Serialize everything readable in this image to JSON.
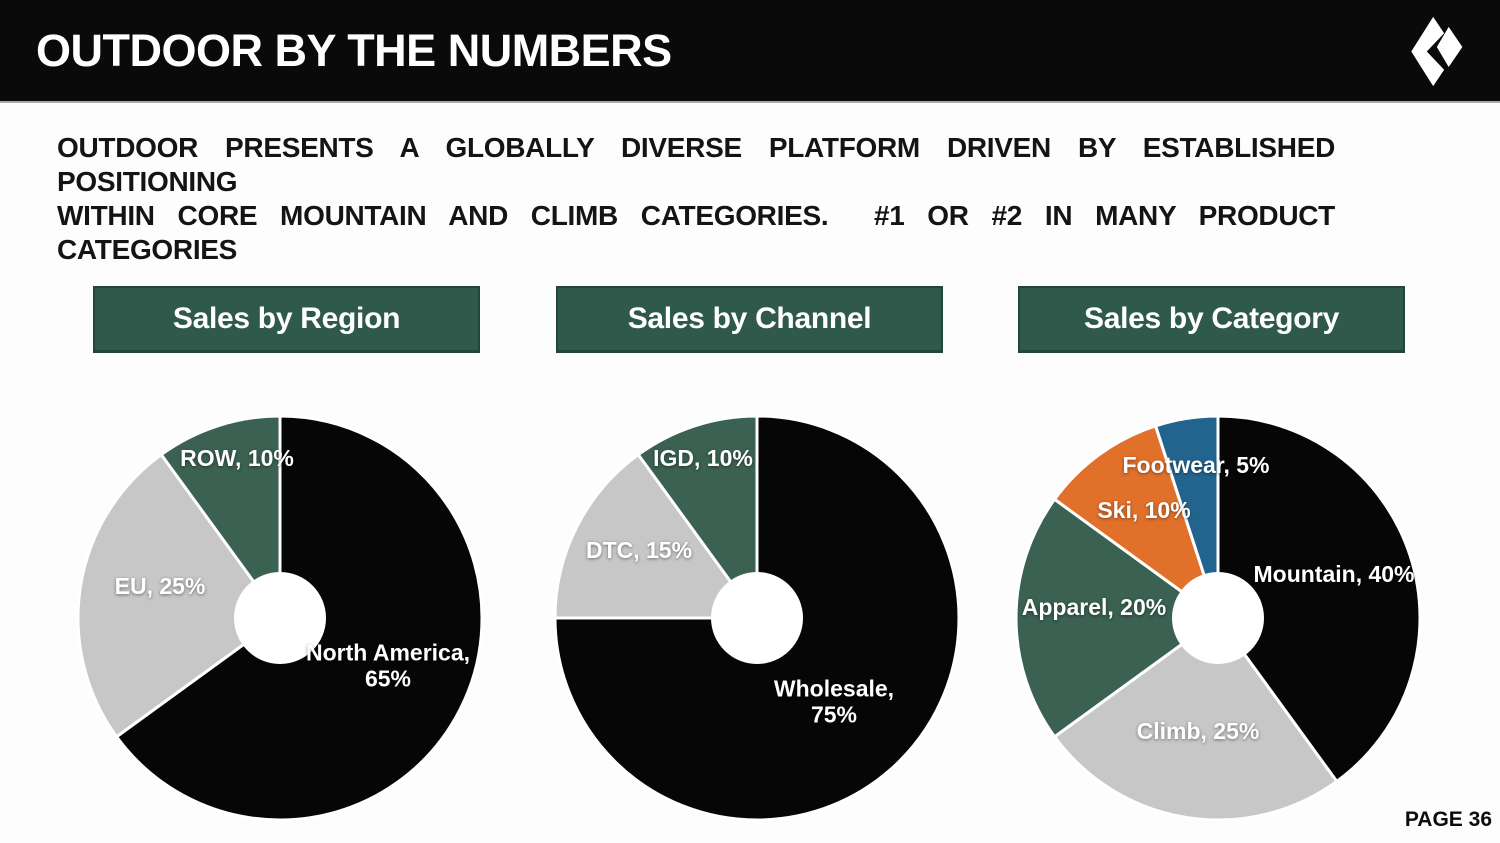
{
  "slide": {
    "title": "OUTDOOR BY THE NUMBERS",
    "subtitle_line1": "OUTDOOR PRESENTS A GLOBALLY DIVERSE PLATFORM DRIVEN BY ESTABLISHED POSITIONING",
    "subtitle_line2": "WITHIN CORE MOUNTAIN AND CLIMB CATEGORIES.  #1 OR #2 IN MANY PRODUCT CATEGORIES",
    "logo": "black-diamond-logo",
    "page_label": "PAGE 36"
  },
  "colors": {
    "title_bar_bg": "#0a0a0a",
    "title_text": "#ffffff",
    "panel_header_bg": "#2f5a4b",
    "panel_header_border": "#24453a",
    "slice_black": "#060606",
    "slice_gray": "#c7c7c7",
    "slice_green": "#3a6151",
    "slice_orange": "#e1702b",
    "slice_blue": "#23648f",
    "slice_label_text": "#ffffff",
    "slice_separator": "#ffffff"
  },
  "chart_data": [
    {
      "type": "pie",
      "style": "donut",
      "title": "Sales by Region",
      "unit": "%",
      "start_angle_deg": 0,
      "direction": "clockwise",
      "donut_hole_ratio": 0.22,
      "legend_position": "labels-on-slices",
      "slices": [
        {
          "name": "North America",
          "value": 65,
          "color": "#060606",
          "label": "North America, 65%"
        },
        {
          "name": "EU",
          "value": 25,
          "color": "#c7c7c7",
          "label": "EU, 25%"
        },
        {
          "name": "ROW",
          "value": 10,
          "color": "#3a6151",
          "label": "ROW, 10%"
        }
      ]
    },
    {
      "type": "pie",
      "style": "donut",
      "title": "Sales by Channel",
      "unit": "%",
      "start_angle_deg": 0,
      "direction": "clockwise",
      "donut_hole_ratio": 0.22,
      "legend_position": "labels-on-slices",
      "slices": [
        {
          "name": "Wholesale",
          "value": 75,
          "color": "#060606",
          "label": "Wholesale, 75%"
        },
        {
          "name": "DTC",
          "value": 15,
          "color": "#c7c7c7",
          "label": "DTC, 15%"
        },
        {
          "name": "IGD",
          "value": 10,
          "color": "#3a6151",
          "label": "IGD, 10%"
        }
      ]
    },
    {
      "type": "pie",
      "style": "donut",
      "title": "Sales by Category",
      "unit": "%",
      "start_angle_deg": 0,
      "direction": "clockwise",
      "donut_hole_ratio": 0.22,
      "legend_position": "labels-on-slices",
      "slices": [
        {
          "name": "Mountain",
          "value": 40,
          "color": "#060606",
          "label": "Mountain, 40%"
        },
        {
          "name": "Climb",
          "value": 25,
          "color": "#c7c7c7",
          "label": "Climb, 25%"
        },
        {
          "name": "Apparel",
          "value": 20,
          "color": "#3a6151",
          "label": "Apparel, 20%"
        },
        {
          "name": "Ski",
          "value": 10,
          "color": "#e1702b",
          "label": "Ski, 10%"
        },
        {
          "name": "Footwear",
          "value": 5,
          "color": "#23648f",
          "label": "Footwear, 5%"
        }
      ]
    }
  ]
}
